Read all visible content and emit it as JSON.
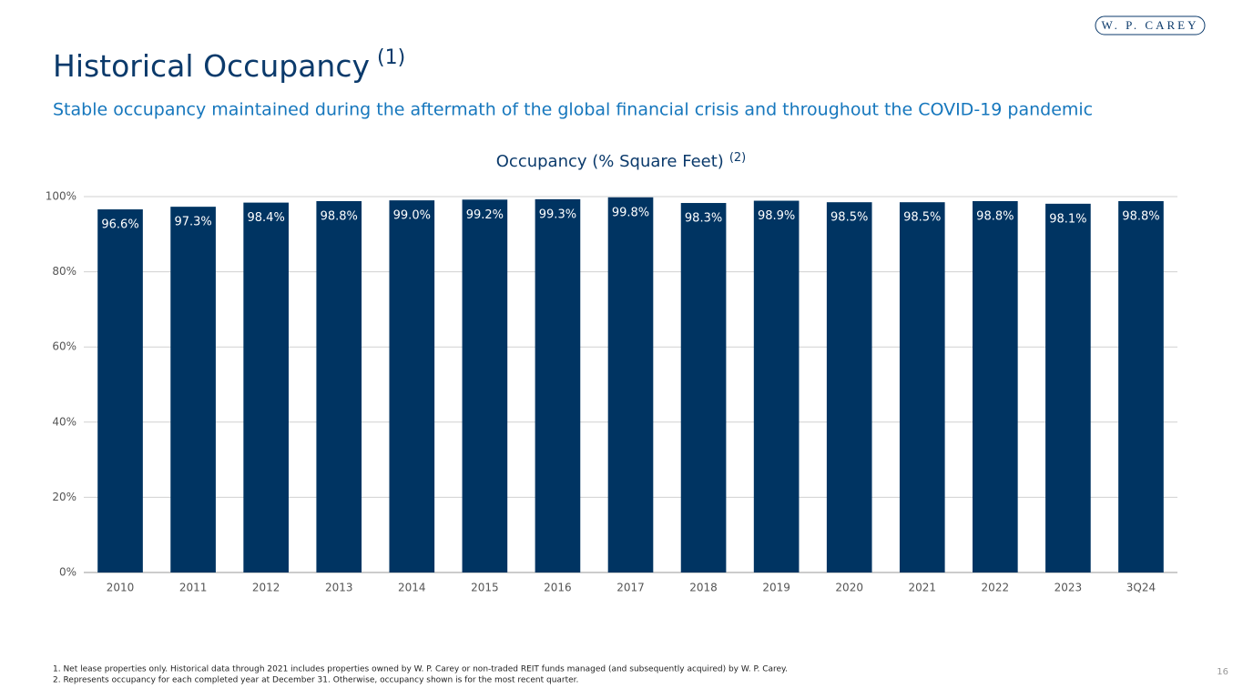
{
  "header": {
    "title": "Historical Occupancy",
    "title_note": "(1)",
    "subtitle": "Stable occupancy maintained during the aftermath of the global financial crisis and throughout the COVID-19 pandemic",
    "logo": "W. P. CAREY"
  },
  "chart_data": {
    "type": "bar",
    "title": "Occupancy (% Square Feet)",
    "title_note": "(2)",
    "categories": [
      "2010",
      "2011",
      "2012",
      "2013",
      "2014",
      "2015",
      "2016",
      "2017",
      "2018",
      "2019",
      "2020",
      "2021",
      "2022",
      "2023",
      "3Q24"
    ],
    "values": [
      96.6,
      97.3,
      98.4,
      98.8,
      99.0,
      99.2,
      99.3,
      99.8,
      98.3,
      98.9,
      98.5,
      98.5,
      98.8,
      98.1,
      98.8
    ],
    "value_labels": [
      "96.6%",
      "97.3%",
      "98.4%",
      "98.8%",
      "99.0%",
      "99.2%",
      "99.3%",
      "99.8%",
      "98.3%",
      "98.9%",
      "98.5%",
      "98.5%",
      "98.8%",
      "98.1%",
      "98.8%"
    ],
    "color": "#003462",
    "ylim": [
      0,
      100
    ],
    "yticks": [
      {
        "value": 0,
        "label": "0%"
      },
      {
        "value": 20,
        "label": "20%"
      },
      {
        "value": 40,
        "label": "40%"
      },
      {
        "value": 60,
        "label": "60%"
      },
      {
        "value": 80,
        "label": "80%"
      },
      {
        "value": 100,
        "label": "100%"
      }
    ],
    "grid": true
  },
  "footnotes": [
    "1. Net lease properties only. Historical data through 2021 includes properties owned by W. P. Carey or non-traded REIT funds managed (and subsequently acquired) by W. P. Carey.",
    "2. Represents occupancy for each completed year at December 31. Otherwise, occupancy shown is for the most recent quarter."
  ],
  "page_number": "16"
}
